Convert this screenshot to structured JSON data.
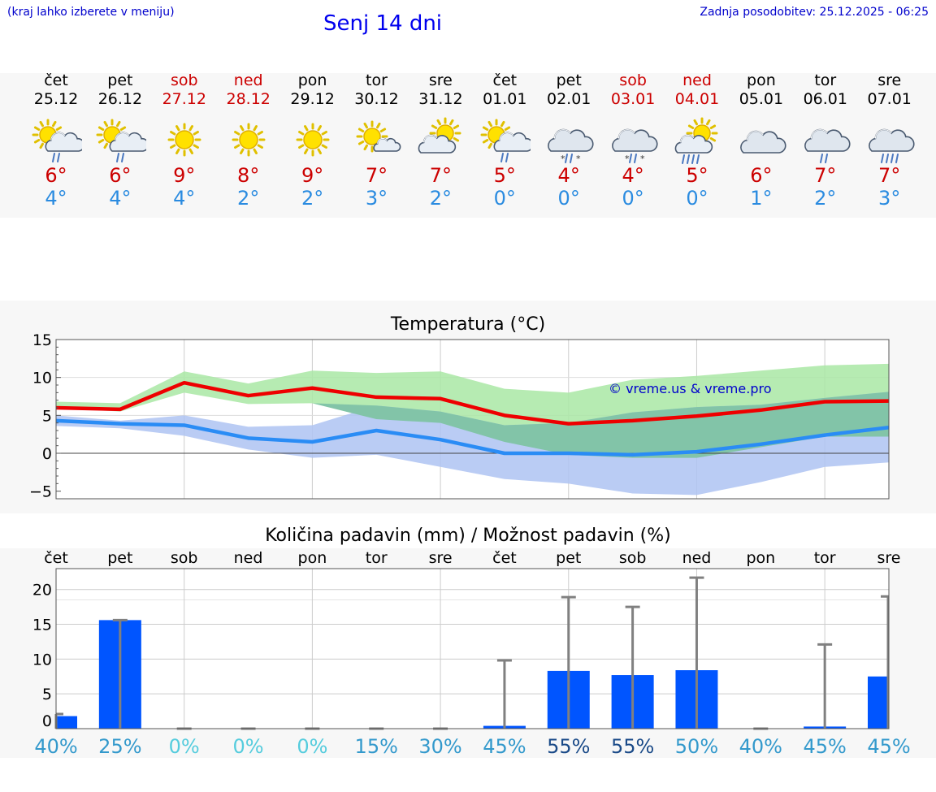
{
  "header": {
    "left_note": "(kraj lahko izberete v meniju)",
    "title": "Senj 14 dni",
    "updated": "Zadnja posodobitev: 25.12.2025 - 06:25"
  },
  "days": [
    {
      "name": "čet",
      "date": "25.12",
      "weekend": false,
      "tmax": "6°",
      "tmin": "4°",
      "icon": "sun-cloud-rain-icon"
    },
    {
      "name": "pet",
      "date": "26.12",
      "weekend": false,
      "tmax": "6°",
      "tmin": "4°",
      "icon": "sun-cloud-rain-icon"
    },
    {
      "name": "sob",
      "date": "27.12",
      "weekend": true,
      "tmax": "9°",
      "tmin": "4°",
      "icon": "sun-icon"
    },
    {
      "name": "ned",
      "date": "28.12",
      "weekend": true,
      "tmax": "8°",
      "tmin": "2°",
      "icon": "sun-icon"
    },
    {
      "name": "pon",
      "date": "29.12",
      "weekend": false,
      "tmax": "9°",
      "tmin": "2°",
      "icon": "sun-icon"
    },
    {
      "name": "tor",
      "date": "30.12",
      "weekend": false,
      "tmax": "7°",
      "tmin": "3°",
      "icon": "sun-small-cloud-icon"
    },
    {
      "name": "sre",
      "date": "31.12",
      "weekend": false,
      "tmax": "7°",
      "tmin": "2°",
      "icon": "sun-cloud-icon"
    },
    {
      "name": "čet",
      "date": "01.01",
      "weekend": false,
      "tmax": "5°",
      "tmin": "0°",
      "icon": "sun-cloud-rain-icon"
    },
    {
      "name": "pet",
      "date": "02.01",
      "weekend": false,
      "tmax": "4°",
      "tmin": "0°",
      "icon": "cloud-sleet-icon"
    },
    {
      "name": "sob",
      "date": "03.01",
      "weekend": true,
      "tmax": "4°",
      "tmin": "0°",
      "icon": "cloud-sleet-icon"
    },
    {
      "name": "ned",
      "date": "04.01",
      "weekend": true,
      "tmax": "5°",
      "tmin": "0°",
      "icon": "sun-cloud-heavy-rain-icon"
    },
    {
      "name": "pon",
      "date": "05.01",
      "weekend": false,
      "tmax": "6°",
      "tmin": "1°",
      "icon": "cloud-icon"
    },
    {
      "name": "tor",
      "date": "06.01",
      "weekend": false,
      "tmax": "7°",
      "tmin": "2°",
      "icon": "cloud-rain-icon"
    },
    {
      "name": "sre",
      "date": "07.01",
      "weekend": false,
      "tmax": "7°",
      "tmin": "3°",
      "icon": "cloud-heavy-rain-icon"
    }
  ],
  "colors": {
    "max_line": "#ee0000",
    "min_line": "#2a8cf5",
    "max_band": "#a9e8a5",
    "min_band": "#aec3f2",
    "overlap_band": "#82c4a8",
    "precip_bar": "#0055ff",
    "whisker": "#808080",
    "weekend": "#cc0000",
    "watermark": "#0000cc"
  },
  "chart_data": [
    {
      "type": "line",
      "title": "Temperatura (°C)",
      "watermark": "© vreme.us & vreme.pro",
      "x": [
        0,
        1,
        2,
        3,
        4,
        5,
        6,
        7,
        8,
        9,
        10,
        11,
        12,
        13
      ],
      "ylim": [
        -6,
        15
      ],
      "yticks": [
        15,
        10,
        5,
        0,
        -5
      ],
      "ytick_labels": [
        "15",
        "10",
        "5",
        "0",
        "−5"
      ],
      "series": [
        {
          "name": "max",
          "values": [
            6.0,
            5.8,
            9.3,
            7.6,
            8.6,
            7.4,
            7.2,
            5.0,
            3.9,
            4.3,
            4.9,
            5.7,
            6.8,
            6.9
          ]
        },
        {
          "name": "min",
          "values": [
            4.3,
            3.9,
            3.7,
            2.0,
            1.5,
            3.0,
            1.8,
            0.0,
            0.0,
            -0.2,
            0.2,
            1.2,
            2.4,
            3.4
          ]
        }
      ],
      "bands": [
        {
          "name": "max_range",
          "low": [
            6.0,
            5.5,
            8.0,
            6.5,
            6.6,
            4.5,
            4.0,
            1.5,
            -0.2,
            -0.6,
            -0.6,
            0.8,
            2.2,
            2.2
          ],
          "high": [
            6.8,
            6.6,
            10.8,
            9.2,
            10.9,
            10.6,
            10.8,
            8.5,
            8.0,
            9.7,
            10.2,
            10.9,
            11.6,
            11.8
          ]
        },
        {
          "name": "min_range",
          "low": [
            3.6,
            3.3,
            2.3,
            0.5,
            -0.6,
            -0.2,
            -1.8,
            -3.4,
            -4.0,
            -5.3,
            -5.5,
            -3.8,
            -1.8,
            -1.2
          ],
          "high": [
            5.0,
            4.3,
            5.0,
            3.5,
            3.7,
            6.3,
            5.5,
            3.7,
            4.0,
            5.4,
            6.1,
            6.4,
            7.3,
            8.1
          ]
        }
      ]
    },
    {
      "type": "bar",
      "title": "Količina padavin (mm) / Možnost padavin (%)",
      "categories": [
        "čet",
        "pet",
        "sob",
        "ned",
        "pon",
        "tor",
        "sre",
        "čet",
        "pet",
        "sob",
        "ned",
        "pon",
        "tor",
        "sre"
      ],
      "ylim": [
        0,
        23
      ],
      "yticks": [
        20,
        15,
        10,
        5,
        0
      ],
      "values": [
        1.8,
        15.6,
        0,
        0,
        0,
        0,
        0,
        0.4,
        8.3,
        7.7,
        8.4,
        0,
        0.3,
        7.5
      ],
      "whisker_high": [
        2.1,
        15.6,
        0,
        0,
        0,
        0,
        0,
        9.8,
        18.9,
        17.5,
        21.7,
        0,
        12.1,
        19.0
      ],
      "chance_labels": [
        "40%",
        "25%",
        "0%",
        "0%",
        "0%",
        "15%",
        "30%",
        "45%",
        "55%",
        "55%",
        "50%",
        "40%",
        "45%",
        "45%"
      ],
      "chance_colors": [
        "#3399cc",
        "#3399cc",
        "#55ccdd",
        "#55ccdd",
        "#55ccdd",
        "#3399cc",
        "#3399cc",
        "#3399cc",
        "#1a4a88",
        "#1a4a88",
        "#3399cc",
        "#3399cc",
        "#3399cc",
        "#3399cc"
      ]
    }
  ]
}
